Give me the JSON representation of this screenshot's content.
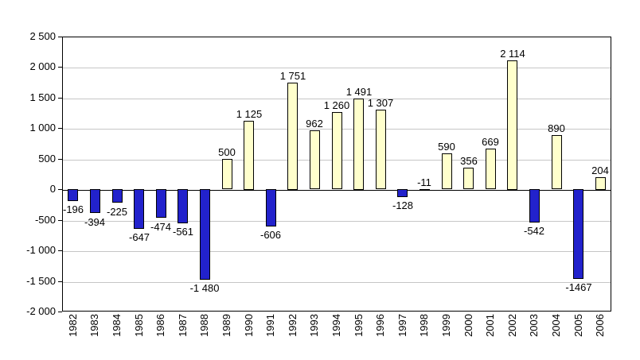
{
  "chart_data": {
    "type": "bar",
    "title": "",
    "xlabel": "",
    "ylabel": "",
    "legend": "none",
    "grid": true,
    "categories": [
      "1982",
      "1983",
      "1984",
      "1985",
      "1986",
      "1987",
      "1988",
      "1989",
      "1990",
      "1991",
      "1992",
      "1993",
      "1994",
      "1995",
      "1996",
      "1997",
      "1998",
      "1999",
      "2000",
      "2001",
      "2002",
      "2003",
      "2004",
      "2005",
      "2006"
    ],
    "values": [
      -196,
      -394,
      -225,
      -647,
      -474,
      -561,
      -1480,
      500,
      1125,
      -606,
      1751,
      962,
      1260,
      1491,
      1307,
      -128,
      -11,
      590,
      356,
      669,
      2114,
      -542,
      890,
      -1467,
      204
    ],
    "labels": [
      "-196",
      "-394",
      "-225",
      "-647",
      "-474",
      "-561",
      "-1 480",
      "500",
      "1 125",
      "-606",
      "1 751",
      "962",
      "1 260",
      "1 491",
      "1 307",
      "-128",
      "-11",
      "590",
      "356",
      "669",
      "2 114",
      "-542",
      "890",
      "-1467",
      "204"
    ],
    "label_above": [
      false,
      false,
      false,
      false,
      false,
      false,
      false,
      true,
      true,
      false,
      true,
      true,
      true,
      true,
      true,
      false,
      true,
      true,
      true,
      true,
      true,
      false,
      true,
      false,
      true
    ],
    "ylim": [
      -2000,
      2500
    ],
    "ytick_values": [
      2500,
      2000,
      1500,
      1000,
      500,
      0,
      -500,
      -1000,
      -1500,
      -2000
    ],
    "ytick_labels": [
      "2 500",
      "2 000",
      "1 500",
      "1 000",
      "500",
      "0",
      "-500",
      "-1 000",
      "-1 500",
      "-2 000"
    ],
    "colors": {
      "positive": "#FFFFCC",
      "negative": "#2222CC",
      "bar_border": "#000000",
      "gridline": "#C6C6C6",
      "axis": "#000000",
      "background": "#FFFFFF"
    }
  }
}
